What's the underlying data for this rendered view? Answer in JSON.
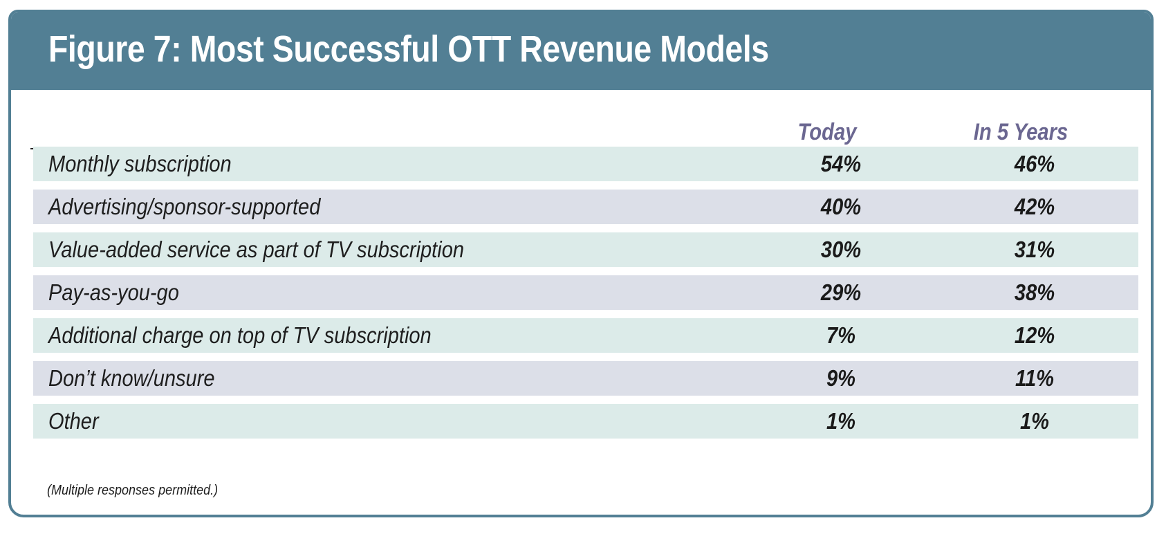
{
  "title": "Figure 7:  Most Successful OTT Revenue Models",
  "columns": [
    "Today",
    "In 5 Years"
  ],
  "footnote": "(Multiple responses permitted.)",
  "chart_data": {
    "type": "table",
    "title": "Figure 7:  Most Successful OTT Revenue Models",
    "columns": [
      "Today",
      "In 5 Years"
    ],
    "rows": [
      {
        "label": "Monthly subscription",
        "values": [
          "54%",
          "46%"
        ]
      },
      {
        "label": "Advertising/sponsor-supported",
        "values": [
          "40%",
          "42%"
        ]
      },
      {
        "label": "Value-added service as part of TV subscription",
        "values": [
          "30%",
          "31%"
        ]
      },
      {
        "label": "Pay-as-you-go",
        "values": [
          "29%",
          "38%"
        ]
      },
      {
        "label": "Additional charge on top of TV subscription",
        "values": [
          "7%",
          "12%"
        ]
      },
      {
        "label": "Don’t know/unsure",
        "values": [
          "9%",
          "11%"
        ]
      },
      {
        "label": "Other",
        "values": [
          "1%",
          "1%"
        ]
      }
    ]
  },
  "colors": {
    "frame": "#527f94",
    "header_text": "#6b6791",
    "row_teal": "#dcebe9",
    "row_gray": "#dcdfe8"
  }
}
